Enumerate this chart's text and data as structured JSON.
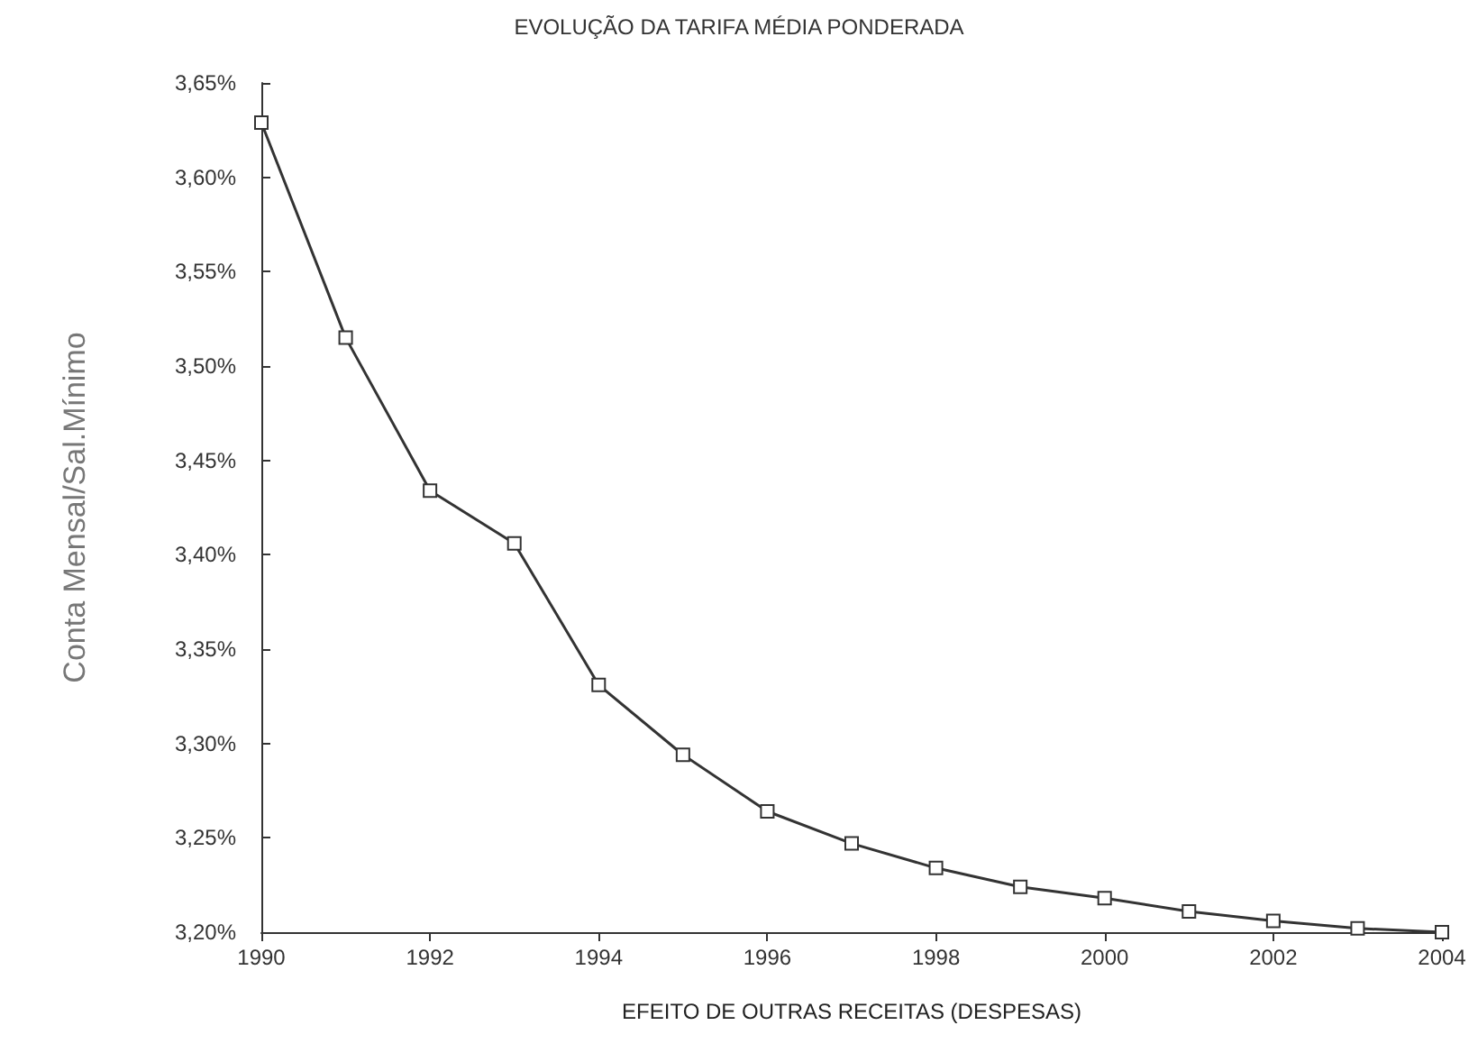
{
  "chart_data": {
    "type": "line",
    "title": "EVOLUÇÃO DA TARIFA MÉDIA PONDERADA",
    "xlabel": "EFEITO DE OUTRAS RECEITAS (DESPESAS)",
    "ylabel": "Conta Mensal/Sal.Mínimo",
    "x": [
      1990,
      1991,
      1992,
      1993,
      1994,
      1995,
      1996,
      1997,
      1998,
      1999,
      2000,
      2001,
      2002,
      2003,
      2004
    ],
    "series": [
      {
        "color": "#333333",
        "values": [
          3.629,
          3.515,
          3.434,
          3.406,
          3.331,
          3.294,
          3.264,
          3.247,
          3.234,
          3.224,
          3.218,
          3.211,
          3.206,
          3.202,
          3.2
        ]
      }
    ],
    "xlim": [
      1990,
      2004
    ],
    "xticks": [
      1990,
      1992,
      1994,
      1996,
      1998,
      2000,
      2002,
      2004
    ],
    "ylim": [
      3.2,
      3.65
    ],
    "yticks": [
      {
        "value": 3.2,
        "label": "3,20%"
      },
      {
        "value": 3.25,
        "label": "3,25%"
      },
      {
        "value": 3.3,
        "label": "3,30%"
      },
      {
        "value": 3.35,
        "label": "3,35%"
      },
      {
        "value": 3.4,
        "label": "3,40%"
      },
      {
        "value": 3.45,
        "label": "3,45%"
      },
      {
        "value": 3.5,
        "label": "3,50%"
      },
      {
        "value": 3.55,
        "label": "3,55%"
      },
      {
        "value": 3.6,
        "label": "3,60%"
      },
      {
        "value": 3.65,
        "label": "3,65%"
      }
    ],
    "marker": "square",
    "line_style": "solid"
  }
}
